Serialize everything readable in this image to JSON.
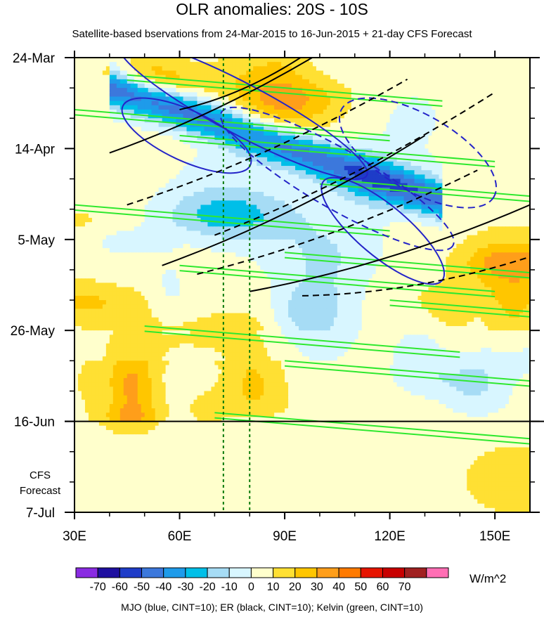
{
  "title": "OLR anomalies: 20S - 10S",
  "subtitle": "Satellite-based bservations from 24-Mar-2015 to 16-Jun-2015 + 21-day CFS Forecast",
  "footnote": "MJO (blue, CINT=10); ER (black, CINT=10); Kelvin (green, CINT=10)",
  "chart_data": {
    "type": "heatmap",
    "title": "OLR anomalies: 20S - 10S",
    "subtitle": "Satellite-based bservations from 24-Mar-2015 to 16-Jun-2015 + 21-day CFS Forecast",
    "x_axis": {
      "range_deg_e": [
        30,
        160
      ],
      "ticks": [
        30,
        60,
        90,
        120,
        150
      ],
      "tick_labels": [
        "30E",
        "60E",
        "90E",
        "120E",
        "150E"
      ]
    },
    "y_axis": {
      "range": [
        "2015-03-24",
        "2015-07-07"
      ],
      "ticks": [
        "2015-03-24",
        "2015-04-14",
        "2015-05-05",
        "2015-05-26",
        "2015-06-16",
        "2015-07-07"
      ],
      "tick_labels": [
        "24-Mar",
        "14-Apr",
        "5-May",
        "26-May",
        "16-Jun",
        "7-Jul"
      ],
      "inverted": true
    },
    "forecast_label": [
      "CFS",
      "Forecast"
    ],
    "observation_end": "2015-06-16",
    "reference_lon_deg_e": [
      72.5,
      80
    ],
    "colorbar": {
      "units": "W/m^2",
      "levels": [
        -70,
        -60,
        -50,
        -40,
        -30,
        -20,
        -10,
        0,
        10,
        20,
        30,
        40,
        50,
        60,
        70
      ],
      "colors": [
        "#8a2be2",
        "#1e0fa0",
        "#1e3cc8",
        "#3c78dc",
        "#1e9bea",
        "#00bfe8",
        "#a6dcf5",
        "#d8f6ff",
        "#ffffcc",
        "#ffe033",
        "#ffc600",
        "#ff9e1a",
        "#ff7a00",
        "#e61400",
        "#c80000",
        "#a02020",
        "#ff6eb4"
      ]
    },
    "contour_legend": [
      {
        "name": "MJO",
        "color": "#2424c8",
        "cint": 10
      },
      {
        "name": "ER",
        "color": "#000000",
        "cint": 10
      },
      {
        "name": "Kelvin",
        "color": "#2ee82e",
        "cint": 10
      }
    ]
  }
}
